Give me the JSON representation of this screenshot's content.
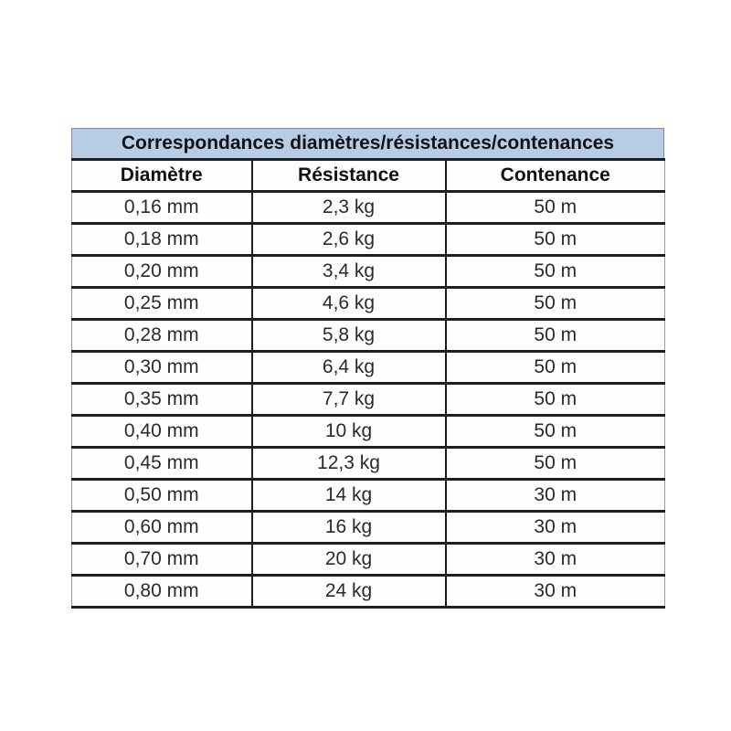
{
  "chart_data": {
    "type": "table",
    "title": "Correspondances diamètres/résistances/contenances",
    "columns": [
      "Diamètre",
      "Résistance",
      "Contenance"
    ],
    "rows": [
      [
        "0,16 mm",
        "2,3 kg",
        "50 m"
      ],
      [
        "0,18 mm",
        "2,6 kg",
        "50 m"
      ],
      [
        "0,20 mm",
        "3,4 kg",
        "50 m"
      ],
      [
        "0,25 mm",
        "4,6 kg",
        "50 m"
      ],
      [
        "0,28 mm",
        "5,8 kg",
        "50 m"
      ],
      [
        "0,30 mm",
        "6,4 kg",
        "50 m"
      ],
      [
        "0,35 mm",
        "7,7 kg",
        "50 m"
      ],
      [
        "0,40 mm",
        "10 kg",
        "50 m"
      ],
      [
        "0,45 mm",
        "12,3 kg",
        "50 m"
      ],
      [
        "0,50 mm",
        "14 kg",
        "30 m"
      ],
      [
        "0,60 mm",
        "16 kg",
        "30 m"
      ],
      [
        "0,70 mm",
        "20 kg",
        "30 m"
      ],
      [
        "0,80 mm",
        "24 kg",
        "30 m"
      ]
    ],
    "colors": {
      "title_background": "#b8cce4",
      "title_text": "#10131c",
      "grid_line": "#1e1e1e",
      "cell_background": "#fefefe"
    }
  }
}
